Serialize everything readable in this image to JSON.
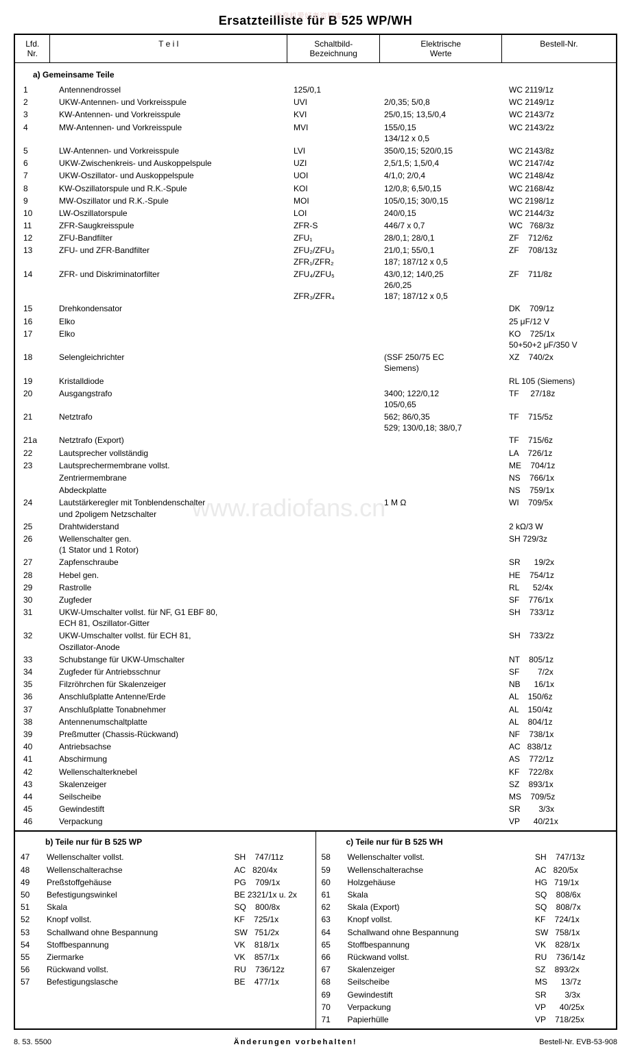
{
  "title": "Ersatzteilliste für B 525 WP/WH",
  "watermark_top": "收音机爱好者资料库",
  "watermark_center": "www.radiofans.cn",
  "headers": {
    "nr": "Lfd.\nNr.",
    "teil": "T e i l",
    "schalt": "Schaltbild-\nBezeichnung",
    "elekt": "Elektrische\nWerte",
    "bestell": "Bestell-Nr."
  },
  "section_a": "a) Gemeinsame Teile",
  "rows_a": [
    {
      "nr": "1",
      "teil": "Antennendrossel",
      "schalt": "125/0,1",
      "elekt": "",
      "bestell": "WC 2119/1z"
    },
    {
      "nr": "2",
      "teil": "UKW-Antennen- und Vorkreisspule",
      "schalt": "UVI",
      "elekt": "2/0,35; 5/0,8",
      "bestell": "WC 2149/1z"
    },
    {
      "nr": "3",
      "teil": "KW-Antennen- und Vorkreisspule",
      "schalt": "KVI",
      "elekt": "25/0,15; 13,5/0,4",
      "bestell": "WC 2143/7z"
    },
    {
      "nr": "4",
      "teil": "MW-Antennen- und Vorkreisspule",
      "schalt": "MVI",
      "elekt": "155/0,15\n134/12 x 0,5",
      "bestell": "WC 2143/2z"
    },
    {
      "nr": "5",
      "teil": "LW-Antennen- und Vorkreisspule",
      "schalt": "LVI",
      "elekt": "350/0,15; 520/0,15",
      "bestell": "WC 2143/8z"
    },
    {
      "nr": "6",
      "teil": "UKW-Zwischenkreis- und Auskoppelspule",
      "schalt": "UZI",
      "elekt": "2,5/1,5; 1,5/0,4",
      "bestell": "WC 2147/4z"
    },
    {
      "nr": "7",
      "teil": "UKW-Oszillator- und Auskoppelspule",
      "schalt": "UOI",
      "elekt": "4/1,0; 2/0,4",
      "bestell": "WC 2148/4z"
    },
    {
      "nr": "8",
      "teil": "KW-Oszillatorspule und R.K.-Spule",
      "schalt": "KOI",
      "elekt": "12/0,8; 6,5/0,15",
      "bestell": "WC 2168/4z"
    },
    {
      "nr": "9",
      "teil": "MW-Oszillator und R.K.-Spule",
      "schalt": "MOI",
      "elekt": "105/0,15; 30/0,15",
      "bestell": "WC 2198/1z"
    },
    {
      "nr": "10",
      "teil": "LW-Oszillatorspule",
      "schalt": "LOI",
      "elekt": "240/0,15",
      "bestell": "WC 2144/3z"
    },
    {
      "nr": "11",
      "teil": "ZFR-Saugkreisspule",
      "schalt": "ZFR-S",
      "elekt": "446/7 x 0,7",
      "bestell": "WC   768/3z"
    },
    {
      "nr": "12",
      "teil": "ZFU-Bandfilter",
      "schalt": "ZFU₁",
      "elekt": "28/0,1; 28/0,1",
      "bestell": "ZF    712/6z"
    },
    {
      "nr": "13",
      "teil": "ZFU- und ZFR-Bandfilter",
      "schalt": "ZFU₂/ZFU₃\nZFR₁/ZFR₂",
      "elekt": "21/0,1; 55/0,1\n187; 187/12 x 0,5",
      "bestell": "ZF    708/13z"
    },
    {
      "nr": "14",
      "teil": "ZFR- und Diskriminatorfilter",
      "schalt": "ZFU₄/ZFU₅\n\nZFR₃/ZFR₄",
      "elekt": "43/0,12; 14/0,25\n26/0,25\n187; 187/12 x 0,5",
      "bestell": "ZF    711/8z"
    },
    {
      "nr": "15",
      "teil": "Drehkondensator",
      "schalt": "",
      "elekt": "",
      "bestell": "DK    709/1z"
    },
    {
      "nr": "16",
      "teil": "Elko",
      "schalt": "",
      "elekt": "",
      "bestell": "25 μF/12 V"
    },
    {
      "nr": "17",
      "teil": "Elko",
      "schalt": "",
      "elekt": "",
      "bestell": "KO    725/1x\n50+50+2 μF/350 V"
    },
    {
      "nr": "18",
      "teil": "Selengleichrichter",
      "schalt": "",
      "elekt": "(SSF 250/75 EC\nSiemens)",
      "bestell": "XZ    740/2x"
    },
    {
      "nr": "19",
      "teil": "Kristalldiode",
      "schalt": "",
      "elekt": "",
      "bestell": "RL 105 (Siemens)"
    },
    {
      "nr": "20",
      "teil": "Ausgangstrafo",
      "schalt": "",
      "elekt": "3400; 122/0,12\n105/0,65",
      "bestell": "TF     27/18z"
    },
    {
      "nr": "21",
      "teil": "Netztrafo",
      "schalt": "",
      "elekt": "562; 86/0,35\n529; 130/0,18; 38/0,7",
      "bestell": "TF    715/5z"
    },
    {
      "nr": "21a",
      "teil": "Netztrafo (Export)",
      "schalt": "",
      "elekt": "",
      "bestell": "TF    715/6z"
    },
    {
      "nr": "22",
      "teil": "Lautsprecher vollständig",
      "schalt": "",
      "elekt": "",
      "bestell": "LA    726/1z"
    },
    {
      "nr": "23",
      "teil": "Lautsprechermembrane vollst.",
      "schalt": "",
      "elekt": "",
      "bestell": "ME    704/1z"
    },
    {
      "nr": "",
      "teil": "   Zentriermembrane",
      "schalt": "",
      "elekt": "",
      "bestell": "NS    766/1x"
    },
    {
      "nr": "",
      "teil": "   Abdeckplatte",
      "schalt": "",
      "elekt": "",
      "bestell": "NS    759/1x"
    },
    {
      "nr": "24",
      "teil": "Lautstärkeregler mit Tonblendenschalter\nund 2poligem Netzschalter",
      "schalt": "",
      "elekt": "1 M Ω",
      "bestell": "WI    709/5x"
    },
    {
      "nr": "25",
      "teil": "Drahtwiderstand",
      "schalt": "",
      "elekt": "",
      "bestell": "2 kΩ/3 W"
    },
    {
      "nr": "26",
      "teil": "Wellenschalter gen.\n   (1 Stator und 1 Rotor)",
      "schalt": "",
      "elekt": "",
      "bestell": "SH 729/3z"
    },
    {
      "nr": "27",
      "teil": "   Zapfenschraube",
      "schalt": "",
      "elekt": "",
      "bestell": "SR      19/2x"
    },
    {
      "nr": "28",
      "teil": "Hebel gen.",
      "schalt": "",
      "elekt": "",
      "bestell": "HE    754/1z"
    },
    {
      "nr": "29",
      "teil": "Rastrolle",
      "schalt": "",
      "elekt": "",
      "bestell": "RL      52/4x"
    },
    {
      "nr": "30",
      "teil": "Zugfeder",
      "schalt": "",
      "elekt": "",
      "bestell": "SF    776/1x"
    },
    {
      "nr": "31",
      "teil": "UKW-Umschalter vollst. für NF, G1 EBF 80,\nECH 81, Oszillator-Gitter",
      "schalt": "",
      "elekt": "",
      "bestell": "SH    733/1z"
    },
    {
      "nr": "32",
      "teil": "UKW-Umschalter vollst. für ECH 81,\nOszillator-Anode",
      "schalt": "",
      "elekt": "",
      "bestell": "SH    733/2z"
    },
    {
      "nr": "33",
      "teil": "Schubstange für UKW-Umschalter",
      "schalt": "",
      "elekt": "",
      "bestell": "NT    805/1z"
    },
    {
      "nr": "34",
      "teil": "Zugfeder für Antriebsschnur",
      "schalt": "",
      "elekt": "",
      "bestell": "SF        7/2x"
    },
    {
      "nr": "35",
      "teil": "Filzröhrchen für Skalenzeiger",
      "schalt": "",
      "elekt": "",
      "bestell": "NB      16/1x"
    },
    {
      "nr": "36",
      "teil": "Anschlußplatte Antenne/Erde",
      "schalt": "",
      "elekt": "",
      "bestell": "AL    150/6z"
    },
    {
      "nr": "37",
      "teil": "Anschlußplatte Tonabnehmer",
      "schalt": "",
      "elekt": "",
      "bestell": "AL    150/4z"
    },
    {
      "nr": "38",
      "teil": "Antennenumschaltplatte",
      "schalt": "",
      "elekt": "",
      "bestell": "AL    804/1z"
    },
    {
      "nr": "39",
      "teil": "Preßmutter (Chassis-Rückwand)",
      "schalt": "",
      "elekt": "",
      "bestell": "NF    738/1x"
    },
    {
      "nr": "40",
      "teil": "Antriebsachse",
      "schalt": "",
      "elekt": "",
      "bestell": "AC   838/1z"
    },
    {
      "nr": "41",
      "teil": "Abschirmung",
      "schalt": "",
      "elekt": "",
      "bestell": "AS    772/1z"
    },
    {
      "nr": "42",
      "teil": "Wellenschalterknebel",
      "schalt": "",
      "elekt": "",
      "bestell": "KF    722/8x"
    },
    {
      "nr": "43",
      "teil": "Skalenzeiger",
      "schalt": "",
      "elekt": "",
      "bestell": "SZ    893/1x"
    },
    {
      "nr": "44",
      "teil": "Seilscheibe",
      "schalt": "",
      "elekt": "",
      "bestell": "MS    709/5z"
    },
    {
      "nr": "45",
      "teil": "Gewindestift",
      "schalt": "",
      "elekt": "",
      "bestell": "SR        3/3x"
    },
    {
      "nr": "46",
      "teil": "Verpackung",
      "schalt": "",
      "elekt": "",
      "bestell": "VP      40/21x"
    }
  ],
  "section_b": "b) Teile nur für B 525 WP",
  "rows_b": [
    {
      "nr": "47",
      "teil": "Wellenschalter vollst.",
      "bestell": "SH    747/11z"
    },
    {
      "nr": "48",
      "teil": "Wellenschalterachse",
      "bestell": "AC   820/4x"
    },
    {
      "nr": "49",
      "teil": "Preßstoffgehäuse",
      "bestell": "PG    709/1x"
    },
    {
      "nr": "50",
      "teil": "Befestigungswinkel",
      "bestell": "BE 2321/1x u. 2x"
    },
    {
      "nr": "51",
      "teil": "Skala",
      "bestell": "SQ    800/8x"
    },
    {
      "nr": "52",
      "teil": "Knopf vollst.",
      "bestell": "KF    725/1x"
    },
    {
      "nr": "53",
      "teil": "Schallwand ohne Bespannung",
      "bestell": "SW   751/2x"
    },
    {
      "nr": "54",
      "teil": "Stoffbespannung",
      "bestell": "VK    818/1x"
    },
    {
      "nr": "55",
      "teil": "Ziermarke",
      "bestell": "VK    857/1x"
    },
    {
      "nr": "56",
      "teil": "Rückwand vollst.",
      "bestell": "RU    736/12z"
    },
    {
      "nr": "57",
      "teil": "Befestigungslasche",
      "bestell": "BE    477/1x"
    }
  ],
  "section_c": "c) Teile nur für B 525 WH",
  "rows_c": [
    {
      "nr": "58",
      "teil": "Wellenschalter vollst.",
      "bestell": "SH    747/13z"
    },
    {
      "nr": "59",
      "teil": "Wellenschalterachse",
      "bestell": "AC   820/5x"
    },
    {
      "nr": "60",
      "teil": "Holzgehäuse",
      "bestell": "HG   719/1x"
    },
    {
      "nr": "61",
      "teil": "Skala",
      "bestell": "SQ    808/6x"
    },
    {
      "nr": "62",
      "teil": "Skala (Export)",
      "bestell": "SQ    808/7x"
    },
    {
      "nr": "63",
      "teil": "Knopf vollst.",
      "bestell": "KF    724/1x"
    },
    {
      "nr": "64",
      "teil": "Schallwand ohne Bespannung",
      "bestell": "SW   758/1x"
    },
    {
      "nr": "65",
      "teil": "Stoffbespannung",
      "bestell": "VK    828/1x"
    },
    {
      "nr": "66",
      "teil": "Rückwand vollst.",
      "bestell": "RU    736/14z"
    },
    {
      "nr": "67",
      "teil": "Skalenzeiger",
      "bestell": "SZ    893/2x"
    },
    {
      "nr": "68",
      "teil": "Seilscheibe",
      "bestell": "MS      13/7z"
    },
    {
      "nr": "69",
      "teil": "Gewindestift",
      "bestell": "SR        3/3x"
    },
    {
      "nr": "70",
      "teil": "Verpackung",
      "bestell": "VP      40/25x"
    },
    {
      "nr": "71",
      "teil": "Papierhülle",
      "bestell": "VP    718/25x"
    }
  ],
  "footer": {
    "left": "8. 53. 5500",
    "center": "Änderungen vorbehalten!",
    "right": "Bestell-Nr. EVB-53-908"
  }
}
